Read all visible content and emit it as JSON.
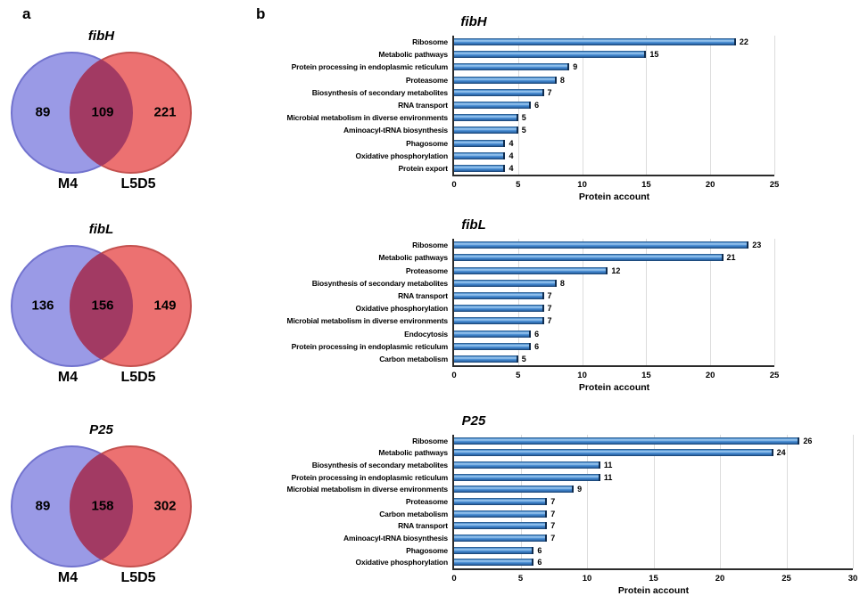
{
  "panels": {
    "a": "a",
    "b": "b"
  },
  "colors": {
    "venn_left_circle": "#9a9ae6",
    "venn_right_circle": "#ec7171",
    "venn_overlap": "#a23a63",
    "bar_fill": "#4a8fd4",
    "bar_edge": "#102c4e",
    "axis": "#2b2b2b",
    "gridline": "#dcdcdc"
  },
  "chart_data": [
    {
      "type": "venn",
      "title": "fibH",
      "sets": [
        {
          "label": "M4",
          "unique": 89
        },
        {
          "label": "L5D5",
          "unique": 221
        }
      ],
      "intersection": 109
    },
    {
      "type": "venn",
      "title": "fibL",
      "sets": [
        {
          "label": "M4",
          "unique": 136
        },
        {
          "label": "L5D5",
          "unique": 149
        }
      ],
      "intersection": 156
    },
    {
      "type": "venn",
      "title": "P25",
      "sets": [
        {
          "label": "M4",
          "unique": 89
        },
        {
          "label": "L5D5",
          "unique": 302
        }
      ],
      "intersection": 158
    },
    {
      "type": "bar",
      "orientation": "horizontal",
      "title": "fibH",
      "xlabel": "Protein account",
      "xlim": [
        0,
        25
      ],
      "ticks": [
        0,
        5,
        10,
        15,
        20,
        25
      ],
      "grid": true,
      "categories": [
        "Ribosome",
        "Metabolic pathways",
        "Protein processing in endoplasmic reticulum",
        "Proteasome",
        "Biosynthesis of secondary metabolites",
        "RNA transport",
        "Microbial metabolism in diverse environments",
        "Aminoacyl-tRNA biosynthesis",
        "Phagosome",
        "Oxidative phosphorylation",
        "Protein export"
      ],
      "values": [
        22,
        15,
        9,
        8,
        7,
        6,
        5,
        5,
        4,
        4,
        4
      ]
    },
    {
      "type": "bar",
      "orientation": "horizontal",
      "title": "fibL",
      "xlabel": "Protein account",
      "xlim": [
        0,
        25
      ],
      "ticks": [
        0,
        5,
        10,
        15,
        20,
        25
      ],
      "grid": true,
      "categories": [
        "Ribosome",
        "Metabolic pathways",
        "Proteasome",
        "Biosynthesis of secondary metabolites",
        "RNA transport",
        "Oxidative phosphorylation",
        "Microbial metabolism in diverse environments",
        "Endocytosis",
        "Protein processing in endoplasmic reticulum",
        "Carbon metabolism"
      ],
      "values": [
        23,
        21,
        12,
        8,
        7,
        7,
        7,
        6,
        6,
        5
      ]
    },
    {
      "type": "bar",
      "orientation": "horizontal",
      "title": "P25",
      "xlabel": "Protein account",
      "xlim": [
        0,
        30
      ],
      "ticks": [
        0,
        5,
        10,
        15,
        20,
        25,
        30
      ],
      "grid": true,
      "categories": [
        "Ribosome",
        "Metabolic pathways",
        "Biosynthesis of secondary metabolites",
        "Protein processing in endoplasmic reticulum",
        "Microbial metabolism in diverse environments",
        "Proteasome",
        "Carbon metabolism",
        "RNA transport",
        "Aminoacyl-tRNA biosynthesis",
        "Phagosome",
        "Oxidative phosphorylation"
      ],
      "values": [
        26,
        24,
        11,
        11,
        9,
        7,
        7,
        7,
        7,
        6,
        6
      ]
    }
  ]
}
